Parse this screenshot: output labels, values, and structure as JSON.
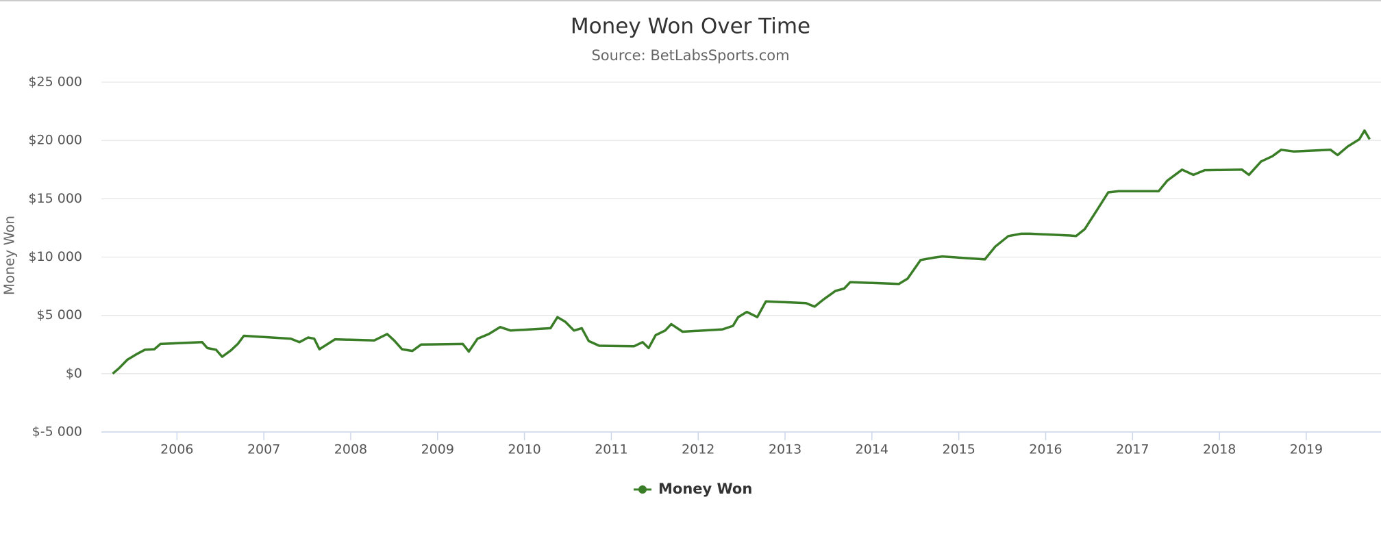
{
  "chart_data": {
    "type": "line",
    "title": "Money Won Over Time",
    "subtitle": "Source: BetLabsSports.com",
    "y_label": "Money Won",
    "xlim": [
      2005.13,
      2019.86
    ],
    "xticks": [
      2006,
      2007,
      2008,
      2009,
      2010,
      2011,
      2012,
      2013,
      2014,
      2015,
      2016,
      2017,
      2018,
      2019
    ],
    "ylim": [
      -5000,
      25000
    ],
    "yticks": [
      {
        "value": -5000,
        "label": "$-5 000"
      },
      {
        "value": 0,
        "label": "$0"
      },
      {
        "value": 5000,
        "label": "$5 000"
      },
      {
        "value": 10000,
        "label": "$10 000"
      },
      {
        "value": 15000,
        "label": "$15 000"
      },
      {
        "value": 20000,
        "label": "$20 000"
      },
      {
        "value": 25000,
        "label": "$25 000"
      }
    ],
    "grid": true,
    "legend": "bottom",
    "x": [
      2005.26,
      2005.33,
      2005.43,
      2005.53,
      2005.63,
      2005.74,
      2005.81,
      2006.29,
      2006.35,
      2006.45,
      2006.52,
      2006.62,
      2006.7,
      2006.77,
      2007.31,
      2007.41,
      2007.51,
      2007.58,
      2007.64,
      2007.82,
      2008.27,
      2008.42,
      2008.5,
      2008.59,
      2008.71,
      2008.81,
      2009.29,
      2009.36,
      2009.46,
      2009.59,
      2009.72,
      2009.84,
      2010.3,
      2010.38,
      2010.47,
      2010.57,
      2010.66,
      2010.74,
      2010.86,
      2011.26,
      2011.36,
      2011.43,
      2011.51,
      2011.62,
      2011.69,
      2011.82,
      2012.28,
      2012.4,
      2012.46,
      2012.56,
      2012.68,
      2012.78,
      2013.24,
      2013.34,
      2013.44,
      2013.58,
      2013.68,
      2013.75,
      2014.31,
      2014.41,
      2014.56,
      2014.71,
      2014.81,
      2015.3,
      2015.42,
      2015.57,
      2015.72,
      2015.82,
      2016.28,
      2016.35,
      2016.45,
      2016.58,
      2016.72,
      2016.84,
      2017.3,
      2017.4,
      2017.57,
      2017.7,
      2017.83,
      2018.26,
      2018.34,
      2018.48,
      2018.61,
      2018.71,
      2018.86,
      2019.28,
      2019.36,
      2019.48,
      2019.61,
      2019.67,
      2019.73
    ],
    "series": [
      {
        "name": "Money Won",
        "color": "#3a7d27",
        "values": [
          0,
          450,
          1200,
          1650,
          2050,
          2100,
          2550,
          2700,
          2200,
          2050,
          1450,
          2000,
          2550,
          3250,
          3000,
          2700,
          3100,
          3000,
          2100,
          2950,
          2850,
          3400,
          2850,
          2100,
          1950,
          2500,
          2550,
          1900,
          3000,
          3400,
          4000,
          3700,
          3900,
          4850,
          4450,
          3700,
          3900,
          2800,
          2400,
          2350,
          2700,
          2200,
          3300,
          3700,
          4250,
          3600,
          3800,
          4100,
          4850,
          5300,
          4850,
          6200,
          6050,
          5750,
          6350,
          7100,
          7300,
          7850,
          7700,
          8150,
          9750,
          9950,
          10050,
          9800,
          10900,
          11800,
          12000,
          12000,
          11850,
          11800,
          12400,
          13900,
          15550,
          15650,
          15650,
          16550,
          17500,
          17050,
          17450,
          17500,
          17050,
          18200,
          18650,
          19200,
          19050,
          19200,
          18750,
          19500,
          20100,
          20850,
          20100
        ]
      }
    ]
  }
}
